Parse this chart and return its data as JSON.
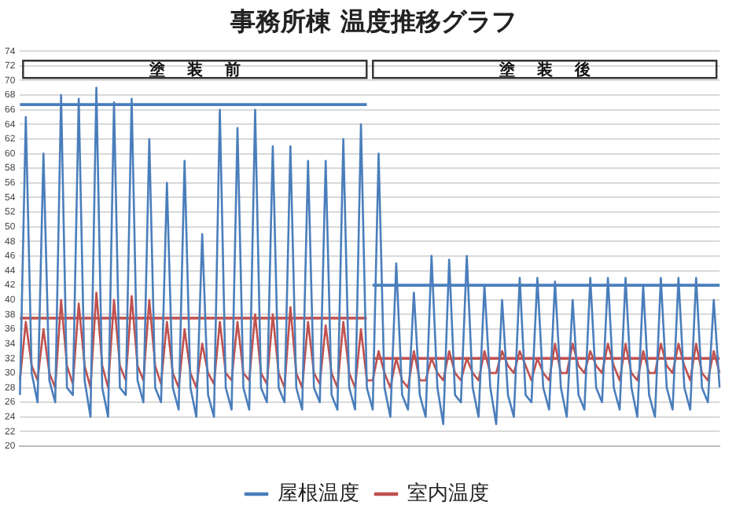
{
  "chart_data": {
    "type": "line",
    "title": "事務所棟 温度推移グラフ",
    "categories": [
      null,
      null,
      null,
      null,
      null,
      null,
      null,
      null,
      null,
      null,
      null,
      null,
      null,
      null,
      null,
      null,
      null,
      null,
      null,
      null,
      null,
      null,
      null,
      null,
      null,
      null,
      null,
      null,
      null,
      null,
      null,
      null,
      null,
      null,
      null,
      null,
      null,
      null,
      null,
      null,
      null,
      null,
      null,
      null,
      null,
      null,
      null,
      null,
      null,
      null,
      null,
      null,
      null,
      null,
      null,
      null,
      null,
      null,
      null,
      null,
      null,
      null,
      null,
      null,
      null,
      null,
      null,
      null,
      null,
      null,
      null,
      null,
      null,
      null,
      null,
      null,
      null,
      null,
      null,
      null,
      null,
      null,
      null,
      null,
      null,
      null,
      null,
      null,
      null,
      null,
      null,
      null,
      null,
      null,
      null,
      null,
      null,
      null,
      null,
      null,
      null,
      null,
      null,
      null,
      null,
      null,
      null,
      null,
      null,
      null,
      null,
      null,
      null,
      null,
      null,
      null,
      null,
      null,
      null,
      null
    ],
    "ylim": [
      20,
      74
    ],
    "yticks": [
      20,
      22,
      24,
      26,
      28,
      30,
      32,
      34,
      36,
      38,
      40,
      42,
      44,
      46,
      48,
      50,
      52,
      54,
      56,
      58,
      60,
      62,
      64,
      66,
      68,
      70,
      72,
      74
    ],
    "grid": "y",
    "legend": "bottom",
    "marker": "none",
    "annotations": [
      "塗装前",
      "塗装後"
    ],
    "series": [
      {
        "name": "屋根温度",
        "color": "#4a7ebb",
        "values": [
          27,
          65,
          30,
          26,
          60,
          29,
          26,
          68,
          28,
          27,
          67.5,
          29,
          24,
          69,
          28,
          24,
          67,
          28,
          27,
          67.5,
          29,
          26,
          62,
          28,
          26,
          56,
          28,
          25,
          59,
          28,
          24,
          49,
          27,
          24,
          66,
          28,
          25,
          63.5,
          28,
          25,
          66,
          28,
          26,
          61,
          28,
          26,
          61,
          28,
          25,
          59,
          28,
          26,
          59,
          27,
          25,
          62,
          28,
          25,
          64,
          28,
          25,
          60,
          28,
          24,
          45,
          27,
          25,
          41,
          27,
          24,
          46,
          28,
          23,
          45.5,
          27,
          26,
          46,
          28,
          24,
          42,
          28,
          23,
          40,
          27,
          24,
          43,
          27,
          26,
          43,
          28,
          25,
          42.5,
          28,
          24,
          40,
          27,
          25,
          43,
          28,
          26,
          43,
          28,
          25,
          43,
          28,
          24,
          42,
          27,
          24,
          43,
          28,
          25,
          43,
          28,
          25,
          43,
          28,
          26,
          40,
          28
        ]
      },
      {
        "name": "室内温度",
        "color": "#c0504d",
        "values": [
          29,
          37,
          31,
          29,
          36,
          30,
          28,
          40,
          31,
          28.5,
          39.5,
          31,
          28,
          41,
          31,
          28,
          40,
          31,
          29,
          40.5,
          31,
          29,
          40,
          31,
          28.5,
          37,
          30,
          28,
          36,
          30,
          28,
          34,
          30,
          28.5,
          37,
          30,
          29,
          37,
          30,
          29,
          38,
          30,
          28.5,
          38,
          30,
          28,
          39,
          30,
          28,
          37,
          30,
          28.5,
          36.5,
          30,
          28,
          37,
          30,
          28,
          36,
          29,
          29,
          33,
          30,
          28,
          32,
          29,
          28,
          33,
          29,
          29,
          32,
          30,
          29,
          33,
          30,
          29,
          32,
          30,
          29,
          33,
          30,
          30,
          33,
          31,
          30,
          33,
          31,
          29,
          32,
          30,
          29,
          34,
          30,
          30,
          34,
          31,
          30,
          33,
          31,
          30,
          34,
          31,
          29,
          34,
          30,
          29,
          33,
          30,
          30,
          34,
          31,
          30,
          34,
          31,
          29,
          34,
          30,
          29,
          33,
          30
        ]
      },
      {
        "color": "#4a7ebb",
        "values": [
          66.7,
          66.7,
          66.7,
          66.7,
          66.7,
          66.7,
          66.7,
          66.7,
          66.7,
          66.7,
          66.7,
          66.7,
          66.7,
          66.7,
          66.7,
          66.7,
          66.7,
          66.7,
          66.7,
          66.7,
          66.7,
          66.7,
          66.7,
          66.7,
          66.7,
          66.7,
          66.7,
          66.7,
          66.7,
          66.7,
          66.7,
          66.7,
          66.7,
          66.7,
          66.7,
          66.7,
          66.7,
          66.7,
          66.7,
          66.7,
          66.7,
          66.7,
          66.7,
          66.7,
          66.7,
          66.7,
          66.7,
          66.7,
          66.7,
          66.7,
          66.7,
          66.7,
          66.7,
          66.7,
          66.7,
          66.7,
          66.7,
          66.7,
          66.7,
          66.7,
          null,
          null,
          null,
          null,
          null,
          null,
          null,
          null,
          null,
          null,
          null,
          null,
          null,
          null,
          null,
          null,
          null,
          null,
          null,
          null,
          null,
          null,
          null,
          null,
          null,
          null,
          null,
          null,
          null,
          null,
          null,
          null,
          null,
          null,
          null,
          null,
          null,
          null,
          null,
          null,
          null,
          null,
          null,
          null,
          null,
          null,
          null,
          null,
          null,
          null,
          null,
          null,
          null,
          null,
          null,
          null,
          null,
          null,
          null,
          null
        ]
      },
      {
        "color": "#c0504d",
        "values": [
          37.5,
          37.5,
          37.5,
          37.5,
          37.5,
          37.5,
          37.5,
          37.5,
          37.5,
          37.5,
          37.5,
          37.5,
          37.5,
          37.5,
          37.5,
          37.5,
          37.5,
          37.5,
          37.5,
          37.5,
          37.5,
          37.5,
          37.5,
          37.5,
          37.5,
          37.5,
          37.5,
          37.5,
          37.5,
          37.5,
          37.5,
          37.5,
          37.5,
          37.5,
          37.5,
          37.5,
          37.5,
          37.5,
          37.5,
          37.5,
          37.5,
          37.5,
          37.5,
          37.5,
          37.5,
          37.5,
          37.5,
          37.5,
          37.5,
          37.5,
          37.5,
          37.5,
          37.5,
          37.5,
          37.5,
          37.5,
          37.5,
          37.5,
          37.5,
          37.5,
          null,
          null,
          null,
          null,
          null,
          null,
          null,
          null,
          null,
          null,
          null,
          null,
          null,
          null,
          null,
          null,
          null,
          null,
          null,
          null,
          null,
          null,
          null,
          null,
          null,
          null,
          null,
          null,
          null,
          null,
          null,
          null,
          null,
          null,
          null,
          null,
          null,
          null,
          null,
          null,
          null,
          null,
          null,
          null,
          null,
          null,
          null,
          null,
          null,
          null,
          null,
          null,
          null,
          null,
          null,
          null,
          null,
          null,
          null,
          null
        ]
      },
      {
        "color": "#4a7ebb",
        "values": [
          null,
          null,
          null,
          null,
          null,
          null,
          null,
          null,
          null,
          null,
          null,
          null,
          null,
          null,
          null,
          null,
          null,
          null,
          null,
          null,
          null,
          null,
          null,
          null,
          null,
          null,
          null,
          null,
          null,
          null,
          null,
          null,
          null,
          null,
          null,
          null,
          null,
          null,
          null,
          null,
          null,
          null,
          null,
          null,
          null,
          null,
          null,
          null,
          null,
          null,
          null,
          null,
          null,
          null,
          null,
          null,
          null,
          null,
          null,
          null,
          42,
          42,
          42,
          42,
          42,
          42,
          42,
          42,
          42,
          42,
          42,
          42,
          42,
          42,
          42,
          42,
          42,
          42,
          42,
          42,
          42,
          42,
          42,
          42,
          42,
          42,
          42,
          42,
          42,
          42,
          42,
          42,
          42,
          42,
          42,
          42,
          42,
          42,
          42,
          42,
          42,
          42,
          42,
          42,
          42,
          42,
          42,
          42,
          42,
          42,
          42,
          42,
          42,
          42,
          42,
          42,
          42,
          42,
          42,
          42
        ]
      },
      {
        "color": "#c0504d",
        "values": [
          null,
          null,
          null,
          null,
          null,
          null,
          null,
          null,
          null,
          null,
          null,
          null,
          null,
          null,
          null,
          null,
          null,
          null,
          null,
          null,
          null,
          null,
          null,
          null,
          null,
          null,
          null,
          null,
          null,
          null,
          null,
          null,
          null,
          null,
          null,
          null,
          null,
          null,
          null,
          null,
          null,
          null,
          null,
          null,
          null,
          null,
          null,
          null,
          null,
          null,
          null,
          null,
          null,
          null,
          null,
          null,
          null,
          null,
          null,
          null,
          32,
          32,
          32,
          32,
          32,
          32,
          32,
          32,
          32,
          32,
          32,
          32,
          32,
          32,
          32,
          32,
          32,
          32,
          32,
          32,
          32,
          32,
          32,
          32,
          32,
          32,
          32,
          32,
          32,
          32,
          32,
          32,
          32,
          32,
          32,
          32,
          32,
          32,
          32,
          32,
          32,
          32,
          32,
          32,
          32,
          32,
          32,
          32,
          32,
          32,
          32,
          32,
          32,
          32,
          32,
          32,
          32,
          32,
          32,
          32
        ]
      }
    ]
  }
}
